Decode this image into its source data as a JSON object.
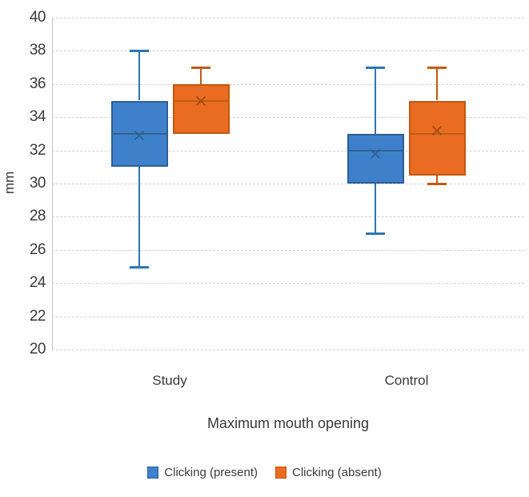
{
  "chart": {
    "background": "#ffffff",
    "text_color": "#3a3a3a",
    "gridline_color": "#d2d2d2",
    "axis_line_color": "#c6c6c6"
  },
  "chart_data": {
    "type": "boxplot",
    "title": "",
    "ylabel": "mm",
    "xlabel": "Maximum mouth opening",
    "categories": [
      "Study",
      "Control"
    ],
    "ylim": [
      20,
      40
    ],
    "yticks": [
      40,
      38,
      36,
      34,
      32,
      30,
      28,
      26,
      24,
      22,
      20
    ],
    "grid": true,
    "legend_position": "bottom",
    "series": [
      {
        "name": "Clicking (present)",
        "fill": "#3f80cb",
        "border": "#2c5f94",
        "whisker_color": "#2e75b6",
        "median_color": "#35618e",
        "mean_color": "#2f5e91",
        "boxes": [
          {
            "category": "Study",
            "min": 25,
            "q1": 31,
            "median": 33,
            "q3": 35,
            "max": 38,
            "mean": 32.9
          },
          {
            "category": "Control",
            "min": 27,
            "q1": 30,
            "median": 32,
            "q3": 33,
            "max": 37,
            "mean": 31.8
          }
        ]
      },
      {
        "name": "Clicking (absent)",
        "fill": "#ea6b22",
        "border": "#c1570f",
        "whisker_color": "#c55a11",
        "median_color": "#bc5e16",
        "mean_color": "#9c4a12",
        "boxes": [
          {
            "category": "Study",
            "min": 33,
            "q1": 33,
            "median": 35,
            "q3": 36,
            "max": 37,
            "mean": 35.0
          },
          {
            "category": "Control",
            "min": 30,
            "q1": 30.5,
            "median": 33,
            "q3": 35,
            "max": 37,
            "mean": 33.2
          }
        ]
      }
    ]
  }
}
